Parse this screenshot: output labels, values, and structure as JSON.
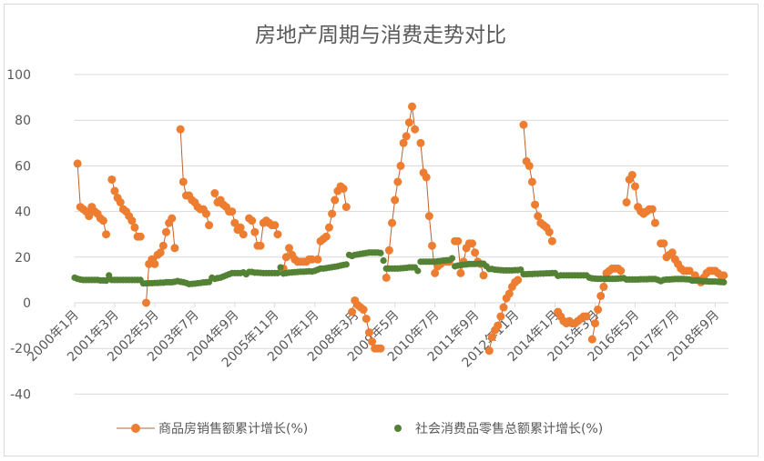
{
  "chart_data": {
    "type": "line",
    "title": "房地产周期与消费走势对比",
    "xlabel": "",
    "ylabel": "",
    "ylim": [
      -40,
      100
    ],
    "yticks": [
      -40,
      -20,
      0,
      20,
      40,
      60,
      80,
      100
    ],
    "grid": true,
    "legend_position": "bottom",
    "x_tick_labels": [
      "2000年1月",
      "2001年3月",
      "2002年5月",
      "2003年7月",
      "2004年9月",
      "2005年11月",
      "2007年1月",
      "2008年3月",
      "2009年5月",
      "2010年7月",
      "2011年9月",
      "2012年11月",
      "2014年1月",
      "2015年3月",
      "2016年5月",
      "2017年7月",
      "2018年9月"
    ],
    "x_start": "2000年1月",
    "x_frequency": "monthly",
    "years": [
      2000,
      2001,
      2002,
      2003,
      2004,
      2005,
      2006,
      2007,
      2008,
      2009,
      2010,
      2011,
      2012,
      2013,
      2014,
      2015,
      2016,
      2017,
      2018
    ],
    "series": [
      {
        "name": "商品房销售额累计增长(%)",
        "color": "#ED7D31",
        "line_color": "#C0602A",
        "marker": "circle",
        "values_by_year": [
          [
            null,
            61,
            42,
            41,
            40,
            38,
            42,
            40,
            39,
            37,
            36,
            30
          ],
          [
            null,
            54,
            49,
            46,
            44,
            41,
            40,
            38,
            36,
            33,
            29,
            29
          ],
          [
            null,
            0,
            17,
            19,
            17,
            21,
            22,
            25,
            31,
            35,
            37,
            24
          ],
          [
            null,
            76,
            53,
            47,
            47,
            45,
            44,
            42,
            41,
            41,
            39,
            34
          ],
          [
            null,
            48,
            44,
            45,
            43,
            42,
            40,
            40,
            35,
            32,
            33,
            30
          ],
          [
            null,
            37,
            36,
            31,
            25,
            25,
            35,
            36,
            35,
            34,
            34,
            30
          ],
          [
            null,
            15,
            20,
            24,
            21,
            19,
            18,
            18,
            18,
            18,
            19,
            19
          ],
          [
            null,
            19,
            27,
            28,
            29,
            33,
            39,
            45,
            49,
            51,
            50,
            42
          ],
          [
            null,
            -4,
            1,
            -1,
            -2,
            -3,
            -7,
            -13,
            -17,
            -20,
            -20,
            -20
          ],
          [
            null,
            11,
            23,
            35,
            45,
            53,
            60,
            70,
            73,
            79,
            86,
            76
          ],
          [
            null,
            70,
            57,
            55,
            38,
            25,
            13,
            16,
            17,
            18,
            18,
            18
          ],
          [
            null,
            27,
            27,
            13,
            18,
            24,
            26,
            26,
            22,
            18,
            17,
            12
          ],
          [
            null,
            -21,
            -15,
            -12,
            -10,
            -6,
            -2,
            2,
            4,
            7,
            9,
            10
          ],
          [
            null,
            78,
            62,
            60,
            53,
            43,
            38,
            35,
            34,
            33,
            31,
            27
          ],
          [
            null,
            -4,
            -6,
            -8,
            -9,
            -8,
            -9,
            -9,
            -8,
            -7,
            -6,
            -6
          ],
          [
            null,
            -16,
            -9,
            -3,
            3,
            7,
            13,
            14,
            15,
            15,
            15,
            14
          ],
          [
            null,
            44,
            54,
            56,
            51,
            42,
            40,
            39,
            40,
            41,
            41,
            35
          ],
          [
            null,
            26,
            26,
            20,
            21,
            22,
            19,
            17,
            15,
            14,
            14,
            14
          ],
          [
            null,
            12,
            10,
            9,
            11,
            13,
            14,
            14,
            14,
            13,
            12,
            12
          ]
        ]
      },
      {
        "name": "社会消费品零售总额累计增长(%)",
        "color": "#548235",
        "marker": "circle",
        "values_by_year": [
          [
            11,
            10.5,
            10.2,
            10,
            10,
            10,
            10,
            10,
            10,
            9.8,
            9.8,
            9.7
          ],
          [
            12,
            10,
            10,
            10,
            10,
            10,
            10,
            10,
            10,
            10,
            10,
            10
          ],
          [
            8.5,
            8.5,
            8.6,
            8.6,
            8.7,
            8.7,
            8.8,
            8.8,
            9,
            9,
            9,
            9.2
          ],
          [
            9.5,
            9.2,
            9,
            8.7,
            8.2,
            8.3,
            8.4,
            8.6,
            8.7,
            8.9,
            9,
            9.1
          ],
          [
            11,
            10.5,
            10.8,
            11,
            11.5,
            12,
            12.5,
            13,
            13,
            13,
            13,
            13.3
          ],
          [
            12.5,
            13.5,
            13.5,
            13.2,
            13.2,
            13.1,
            13,
            13,
            13,
            13,
            13,
            13
          ],
          [
            15.5,
            12.8,
            13,
            13.2,
            13.3,
            13.4,
            13.5,
            13.6,
            13.6,
            13.7,
            13.8,
            13.7
          ],
          [
            14,
            14.5,
            15,
            15,
            15.2,
            15.4,
            15.6,
            15.8,
            16,
            16.3,
            16.6,
            16.8
          ],
          [
            21,
            20.5,
            21,
            21.2,
            21.4,
            21.6,
            21.8,
            22,
            22,
            22,
            22,
            21.8
          ],
          [
            18.5,
            15,
            15,
            15,
            15,
            15,
            15.1,
            15.2,
            15.3,
            15.5,
            15.5,
            15.5
          ],
          [
            14,
            18,
            18,
            18,
            18,
            18,
            18,
            18.2,
            18.3,
            18.5,
            18.6,
            18.7
          ],
          [
            19.5,
            16,
            16.3,
            16.5,
            16.7,
            16.8,
            17,
            17,
            17,
            17.1,
            17.1,
            17.1
          ],
          [
            16,
            14.8,
            14.8,
            14.5,
            14.4,
            14.3,
            14.2,
            14.2,
            14.2,
            14.2,
            14.3,
            14.3
          ],
          [
            14.5,
            12.5,
            12.5,
            12.6,
            12.6,
            12.7,
            12.7,
            12.8,
            12.8,
            12.9,
            12.9,
            13
          ],
          [
            13,
            11.8,
            12,
            12,
            12,
            12,
            12,
            12,
            12,
            12,
            12,
            12
          ],
          [
            11,
            10.7,
            10.6,
            10.5,
            10.5,
            10.5,
            10.5,
            10.5,
            10.5,
            10.5,
            10.6,
            10.7
          ],
          [
            10.8,
            10.2,
            10.2,
            10.2,
            10.2,
            10.2,
            10.3,
            10.3,
            10.3,
            10.4,
            10.4,
            10.4
          ],
          [
            10,
            9.5,
            10,
            10.2,
            10.2,
            10.3,
            10.4,
            10.4,
            10.4,
            10.4,
            10.3,
            10.2
          ],
          [
            9.7,
            9.8,
            9.8,
            9.6,
            9.4,
            9.4,
            9.3,
            9.3,
            9.3,
            9.2,
            9.1,
            9
          ]
        ]
      }
    ]
  }
}
